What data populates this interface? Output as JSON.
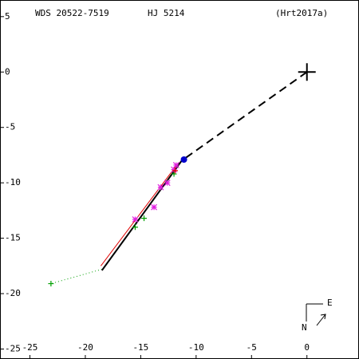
{
  "chart_data": {
    "type": "scatter",
    "title": "WDS 20522-7519",
    "subtitle": "HJ 5214",
    "reference": "(Hrt2017a)",
    "compass": {
      "east": "E",
      "north": "N"
    },
    "xlim": [
      -27.7,
      4.7
    ],
    "ylim": [
      -25.9,
      6.5
    ],
    "xticks": [
      -25,
      -20,
      -15,
      -10,
      -5,
      0
    ],
    "yticks": [
      5,
      0,
      -5,
      -10,
      -15,
      -20,
      -25
    ],
    "series": [
      {
        "marker": "dotted",
        "color": "#00a000",
        "x": [
          -18.5,
          -23.1
        ],
        "y": [
          -17.8,
          -19.1
        ]
      },
      {
        "marker": "line",
        "color": "#e00000",
        "x": [
          -11.6,
          -18.6
        ],
        "y": [
          -8.2,
          -17.5
        ]
      },
      {
        "marker": "line",
        "color": "#000000",
        "x": [
          -11.3,
          -18.5
        ],
        "y": [
          -8.0,
          -17.9
        ]
      },
      {
        "marker": "dashed",
        "color": "#000000",
        "x": [
          0,
          -11.3
        ],
        "y": [
          0,
          -8.0
        ]
      },
      {
        "marker": "plus",
        "color": "#00a000",
        "x": [
          -23.1,
          -15.5,
          -14.7,
          -12.0
        ],
        "y": [
          -19.1,
          -14.0,
          -13.2,
          -9.2
        ]
      },
      {
        "marker": "asterisk",
        "color": "#e020e0",
        "x": [
          -15.5,
          -13.8,
          -12.6,
          -13.2,
          -12.0,
          -11.8
        ],
        "y": [
          -13.3,
          -12.2,
          -10.0,
          -10.4,
          -8.8,
          -8.4
        ]
      },
      {
        "marker": "plus",
        "color": "#e00000",
        "x": [
          -11.9
        ],
        "y": [
          -8.9
        ]
      },
      {
        "marker": "dot",
        "color": "#0000cc",
        "x": [
          -11.1
        ],
        "y": [
          -7.9
        ]
      },
      {
        "marker": "cross",
        "color": "#000000",
        "x": [
          0
        ],
        "y": [
          0
        ]
      }
    ]
  }
}
